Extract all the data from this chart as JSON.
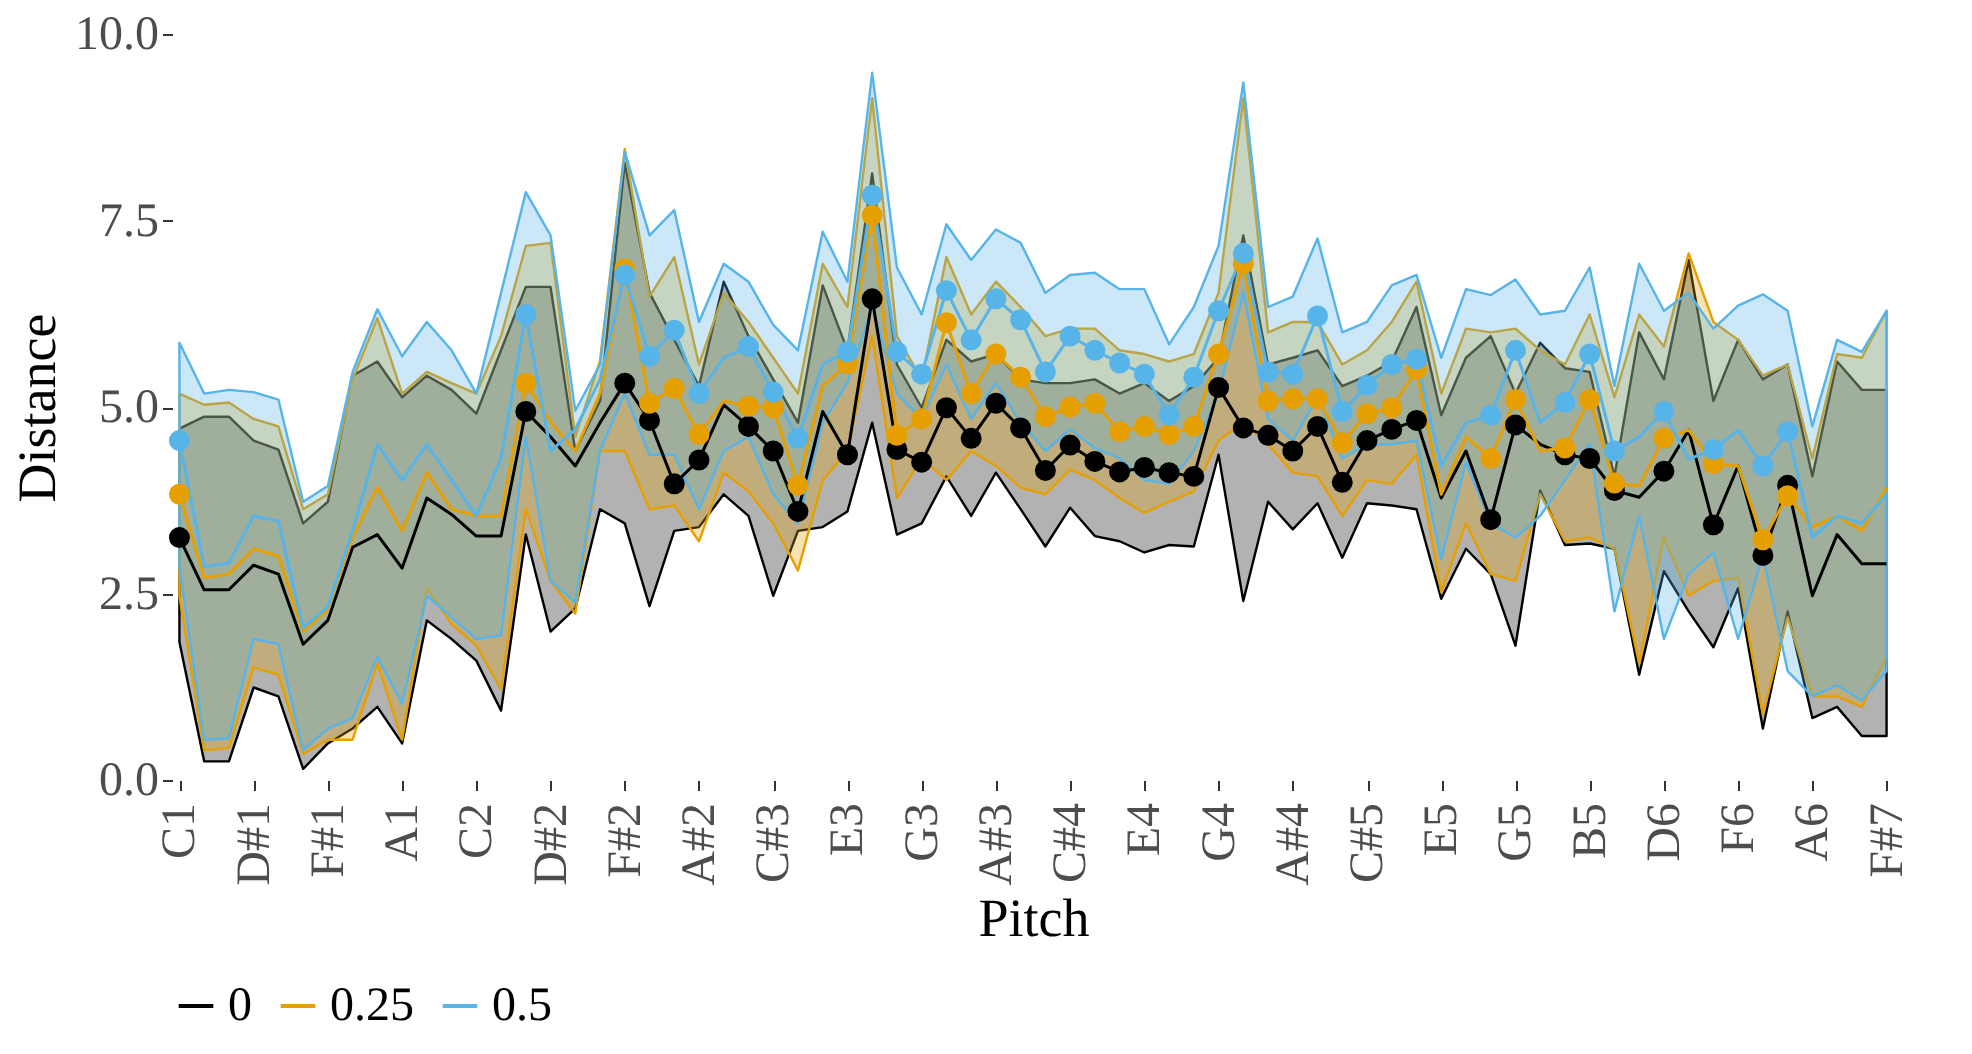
{
  "chart_data": {
    "type": "line",
    "xlabel": "Pitch",
    "ylabel": "Distance",
    "categories": [
      "C1",
      null,
      null,
      "D#1",
      null,
      null,
      "F#1",
      null,
      null,
      "A1",
      null,
      null,
      "C2",
      null,
      null,
      "D#2",
      null,
      null,
      "F#2",
      null,
      null,
      "A#2",
      null,
      null,
      "C#3",
      null,
      null,
      "E3",
      null,
      null,
      "G3",
      null,
      null,
      "A#3",
      null,
      null,
      "C#4",
      null,
      null,
      "E4",
      null,
      null,
      "G4",
      null,
      null,
      "A#4",
      null,
      null,
      "C#5",
      null,
      null,
      "E5",
      null,
      null,
      "G5",
      null,
      null,
      "B5",
      null,
      null,
      "D6",
      null,
      null,
      "F6",
      null,
      null,
      "A6",
      null,
      null,
      "F#7"
    ],
    "ylim": [
      0,
      10
    ],
    "yticks": [
      {
        "value": 0,
        "label": "0.0"
      },
      2.5,
      {
        "value": 5,
        "label": "5.0"
      },
      7.5,
      {
        "value": 10,
        "label": "10.0"
      }
    ],
    "grid": false,
    "legend": "bottom",
    "marker": "none",
    "line_style": "solid",
    "series": [
      {
        "name": "0",
        "color": "#000000",
        "values": [
          3.25,
          2.55,
          2.55,
          2.88,
          2.76,
          1.82,
          2.14,
          3.12,
          3.29,
          2.84,
          3.78,
          3.56,
          3.27,
          3.27,
          4.94,
          4.6,
          4.21,
          4.79,
          5.32,
          4.82,
          3.97,
          4.29,
          5.03,
          4.74,
          4.41,
          3.6,
          4.94,
          4.36,
          6.45,
          4.43,
          4.26,
          4.99,
          4.58,
          5.05,
          4.72,
          4.15,
          4.49,
          4.27,
          4.13,
          4.19,
          4.12,
          4.07,
          5.26,
          4.72,
          4.62,
          4.41,
          4.74,
          3.99,
          4.55,
          4.7,
          4.82,
          3.78,
          4.41,
          3.49,
          4.76,
          4.5,
          4.36,
          4.31,
          3.88,
          3.79,
          4.14,
          4.69,
          3.42,
          4.21,
          3.01,
          3.95,
          2.47,
          3.29,
          2.9,
          2.9
        ],
        "upper": [
          4.71,
          4.87,
          4.87,
          4.55,
          4.43,
          3.44,
          3.73,
          5.42,
          5.61,
          5.13,
          5.42,
          5.23,
          4.91,
          5.76,
          6.61,
          6.61,
          4.41,
          5.08,
          8.27,
          6.53,
          5.9,
          5.28,
          6.68,
          5.95,
          5.37,
          4.79,
          6.63,
          5.76,
          8.13,
          5.57,
          4.99,
          5.9,
          5.61,
          5.71,
          5.37,
          5.32,
          5.32,
          5.37,
          5.18,
          5.32,
          5.08,
          5.28,
          5.66,
          7.3,
          5.57,
          5.66,
          5.76,
          5.28,
          5.42,
          5.61,
          6.34,
          4.89,
          5.66,
          5.95,
          5.18,
          5.86,
          5.52,
          5.47,
          4.07,
          6.0,
          5.37,
          6.97,
          5.08,
          5.9,
          5.37,
          5.57,
          4.07,
          5.61,
          5.23,
          5.23
        ],
        "lower": [
          1.85,
          0.25,
          0.25,
          1.24,
          1.12,
          0.15,
          0.49,
          0.69,
          0.98,
          0.49,
          2.14,
          1.89,
          1.6,
          0.93,
          3.29,
          1.99,
          2.3,
          3.63,
          3.44,
          2.33,
          3.34,
          3.39,
          3.83,
          3.54,
          2.47,
          3.34,
          3.39,
          3.6,
          4.79,
          3.29,
          3.44,
          4.07,
          3.54,
          4.12,
          3.63,
          3.13,
          3.65,
          3.27,
          3.2,
          3.05,
          3.15,
          3.13,
          4.36,
          2.4,
          3.73,
          3.36,
          3.71,
          2.98,
          3.71,
          3.68,
          3.63,
          2.43,
          3.1,
          2.76,
          1.8,
          3.88,
          3.15,
          3.17,
          3.1,
          1.41,
          2.8,
          2.26,
          1.78,
          2.57,
          0.69,
          2.26,
          0.83,
          0.98,
          0.59,
          0.59
        ]
      },
      {
        "name": "0.25",
        "color": "#e69f00",
        "values": [
          3.83,
          2.71,
          2.76,
          3.1,
          3.0,
          1.99,
          2.28,
          3.25,
          3.92,
          3.34,
          4.12,
          3.63,
          3.54,
          3.54,
          5.32,
          4.8,
          4.41,
          5.18,
          6.85,
          5.05,
          5.25,
          4.63,
          5.08,
          5.01,
          4.99,
          3.95,
          5.28,
          5.58,
          7.57,
          4.62,
          4.84,
          6.13,
          5.18,
          5.71,
          5.4,
          4.87,
          5.0,
          5.05,
          4.67,
          4.74,
          4.63,
          4.74,
          5.71,
          6.92,
          5.08,
          5.11,
          5.11,
          4.52,
          4.91,
          4.99,
          5.5,
          3.83,
          4.6,
          4.31,
          5.1,
          4.41,
          4.45,
          5.1,
          3.98,
          3.94,
          4.58,
          4.69,
          4.24,
          4.21,
          3.22,
          3.81,
          3.39,
          3.54,
          3.34,
          3.92
        ],
        "upper": [
          5.18,
          5.03,
          5.06,
          4.84,
          4.74,
          3.63,
          3.83,
          5.37,
          6.19,
          5.18,
          5.47,
          5.32,
          5.18,
          5.95,
          7.16,
          7.2,
          4.6,
          5.62,
          8.46,
          6.48,
          7.01,
          5.57,
          6.53,
          6.14,
          5.66,
          5.18,
          6.92,
          6.34,
          9.14,
          5.95,
          5.37,
          7.01,
          6.24,
          6.68,
          6.34,
          5.95,
          6.05,
          6.05,
          5.76,
          5.71,
          5.61,
          5.71,
          6.53,
          9.14,
          6.0,
          6.14,
          6.14,
          5.57,
          5.76,
          6.14,
          6.68,
          5.18,
          6.05,
          6.0,
          6.05,
          5.76,
          5.57,
          6.24,
          5.13,
          6.24,
          5.81,
          7.06,
          6.14,
          5.9,
          5.42,
          5.57,
          4.31,
          5.71,
          5.66,
          6.29
        ],
        "lower": [
          2.47,
          0.4,
          0.43,
          1.51,
          1.41,
          0.35,
          0.54,
          0.54,
          1.56,
          0.54,
          2.57,
          2.09,
          1.8,
          1.22,
          3.63,
          2.67,
          2.23,
          4.41,
          4.41,
          3.63,
          3.68,
          3.2,
          4.12,
          3.87,
          3.44,
          2.81,
          4.02,
          4.41,
          5.95,
          3.78,
          4.31,
          4.02,
          4.41,
          4.21,
          3.92,
          3.83,
          4.16,
          4.02,
          3.78,
          3.58,
          3.73,
          3.87,
          4.55,
          4.79,
          4.5,
          4.12,
          4.07,
          3.54,
          4.02,
          3.97,
          4.36,
          2.52,
          3.44,
          2.76,
          2.67,
          3.83,
          3.2,
          3.25,
          3.1,
          1.56,
          3.25,
          2.47,
          2.67,
          2.71,
          0.88,
          2.18,
          1.12,
          1.12,
          0.98,
          1.65
        ]
      },
      {
        "name": "0.5",
        "color": "#56b4e9",
        "values": [
          4.55,
          2.86,
          2.91,
          3.54,
          3.47,
          2.04,
          2.32,
          3.34,
          4.5,
          4.02,
          4.5,
          4.02,
          3.54,
          4.31,
          6.24,
          4.41,
          4.7,
          5.37,
          6.77,
          5.68,
          6.03,
          5.18,
          5.66,
          5.81,
          5.2,
          4.58,
          5.57,
          5.74,
          7.84,
          5.74,
          5.44,
          6.56,
          5.9,
          6.45,
          6.17,
          5.47,
          5.95,
          5.76,
          5.59,
          5.44,
          4.89,
          5.4,
          6.29,
          7.06,
          5.47,
          5.44,
          6.22,
          4.94,
          5.29,
          5.57,
          5.64,
          4.21,
          4.79,
          4.89,
          5.76,
          4.79,
          5.06,
          5.71,
          4.41,
          4.6,
          4.94,
          4.3,
          4.43,
          4.69,
          4.21,
          4.67,
          3.25,
          3.54,
          3.44,
          3.83
        ],
        "upper": [
          5.86,
          5.18,
          5.23,
          5.2,
          5.1,
          3.73,
          3.94,
          5.47,
          6.31,
          5.68,
          6.14,
          5.76,
          5.18,
          6.53,
          7.88,
          7.3,
          4.95,
          5.57,
          8.42,
          7.3,
          7.64,
          6.14,
          6.92,
          6.68,
          6.1,
          5.76,
          7.35,
          6.68,
          9.48,
          6.87,
          6.24,
          7.45,
          6.97,
          7.38,
          7.2,
          6.53,
          6.77,
          6.8,
          6.58,
          6.58,
          5.84,
          6.34,
          7.16,
          9.35,
          6.34,
          6.48,
          7.26,
          6.0,
          6.14,
          6.63,
          6.77,
          5.66,
          6.58,
          6.5,
          6.71,
          6.24,
          6.29,
          6.87,
          5.28,
          6.92,
          6.29,
          6.53,
          6.05,
          6.36,
          6.51,
          6.29,
          4.74,
          5.9,
          5.74,
          6.29
        ],
        "lower": [
          2.86,
          0.54,
          0.56,
          1.89,
          1.82,
          0.4,
          0.69,
          0.83,
          1.65,
          1.02,
          2.47,
          2.18,
          1.89,
          1.94,
          4.6,
          2.67,
          2.38,
          4.41,
          5.18,
          4.36,
          4.36,
          3.63,
          4.41,
          4.6,
          3.83,
          3.44,
          4.79,
          5.32,
          6.34,
          5.18,
          4.84,
          5.57,
          4.84,
          5.32,
          4.79,
          4.41,
          4.7,
          4.45,
          4.31,
          4.02,
          3.97,
          4.41,
          5.18,
          6.53,
          4.84,
          4.55,
          5.13,
          4.31,
          4.5,
          4.5,
          4.55,
          2.96,
          4.26,
          3.44,
          3.25,
          3.54,
          4.02,
          4.5,
          2.26,
          3.54,
          1.89,
          2.76,
          3.05,
          1.89,
          3.01,
          1.46,
          1.12,
          1.27,
          1.07,
          1.46
        ]
      },
      {
        "type": "scatter",
        "marker": "circle",
        "color": "#000000",
        "values": [
          3.25,
          null,
          null,
          null,
          null,
          null,
          null,
          null,
          null,
          null,
          null,
          null,
          null,
          null,
          4.94,
          null,
          null,
          null,
          5.32,
          4.82,
          3.97,
          4.29,
          null,
          4.74,
          4.41,
          3.6,
          null,
          4.36,
          6.45,
          4.43,
          4.26,
          4.99,
          4.58,
          5.05,
          4.72,
          4.15,
          4.49,
          4.27,
          4.13,
          4.19,
          4.12,
          4.07,
          5.26,
          4.72,
          4.62,
          4.41,
          4.74,
          3.99,
          4.55,
          4.7,
          4.82,
          null,
          null,
          3.49,
          4.76,
          null,
          4.36,
          4.31,
          3.88,
          null,
          4.14,
          null,
          3.42,
          null,
          3.01,
          3.95,
          null,
          null,
          null,
          null
        ]
      },
      {
        "type": "scatter",
        "marker": "circle",
        "color": "#e69f00",
        "values": [
          3.83,
          null,
          null,
          null,
          null,
          null,
          null,
          null,
          null,
          null,
          null,
          null,
          null,
          null,
          5.32,
          null,
          null,
          null,
          6.85,
          5.05,
          5.25,
          4.63,
          null,
          5.01,
          4.99,
          3.95,
          null,
          5.58,
          7.57,
          4.62,
          4.84,
          6.13,
          5.18,
          5.71,
          5.4,
          4.87,
          5.0,
          5.05,
          4.67,
          4.74,
          4.63,
          4.74,
          5.71,
          6.92,
          5.08,
          5.11,
          5.11,
          4.52,
          4.91,
          4.99,
          5.5,
          null,
          null,
          4.31,
          5.1,
          null,
          4.45,
          5.1,
          3.98,
          null,
          4.58,
          null,
          4.24,
          null,
          3.22,
          3.81,
          null,
          null,
          null,
          null
        ]
      },
      {
        "type": "scatter",
        "marker": "circle",
        "color": "#56b4e9",
        "values": [
          4.55,
          null,
          null,
          null,
          null,
          null,
          null,
          null,
          null,
          null,
          null,
          null,
          null,
          null,
          6.24,
          null,
          null,
          null,
          6.77,
          5.68,
          6.03,
          5.18,
          null,
          5.81,
          5.2,
          4.58,
          null,
          5.74,
          7.84,
          5.74,
          5.44,
          6.56,
          5.9,
          6.45,
          6.17,
          5.47,
          5.95,
          5.76,
          5.59,
          5.44,
          4.89,
          5.4,
          6.29,
          7.06,
          5.47,
          5.44,
          6.22,
          4.94,
          5.29,
          5.57,
          5.64,
          null,
          null,
          4.89,
          5.76,
          null,
          5.06,
          5.71,
          4.41,
          null,
          4.94,
          null,
          4.43,
          null,
          4.21,
          4.67,
          null,
          null,
          null,
          null
        ]
      }
    ]
  }
}
